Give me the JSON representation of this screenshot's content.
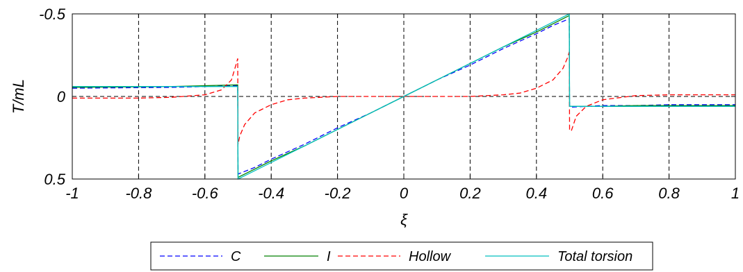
{
  "chart_data": {
    "type": "line",
    "title": "",
    "xlabel": "ξ",
    "ylabel": "T/mL",
    "xlim": [
      -1,
      1
    ],
    "ylim": [
      -0.5,
      0.5
    ],
    "y_reversed": true,
    "grid": true,
    "legend_position": "bottom-center",
    "x_ticks": [
      "-1",
      "-0.8",
      "-0.6",
      "-0.4",
      "-0.2",
      "0",
      "0.2",
      "0.4",
      "0.6",
      "0.8",
      "1"
    ],
    "x_tick_values": [
      -1,
      -0.8,
      -0.6,
      -0.4,
      -0.2,
      0,
      0.2,
      0.4,
      0.6,
      0.8,
      1
    ],
    "y_ticks": [
      "-0.5",
      "0",
      "0.5"
    ],
    "y_tick_values": [
      -0.5,
      0,
      0.5
    ],
    "series": [
      {
        "name": "C",
        "color": "#0000ff",
        "dash": "dashed",
        "x": [
          -1,
          -0.7,
          -0.6,
          -0.501,
          -0.5,
          -0.45,
          -0.4,
          -0.3,
          -0.2,
          -0.1,
          0,
          0.1,
          0.2,
          0.3,
          0.4,
          0.45,
          0.499,
          0.5,
          0.55,
          0.6,
          0.7,
          0.8,
          0.9,
          1
        ],
        "y": [
          -0.05,
          -0.055,
          -0.06,
          -0.065,
          0.47,
          0.43,
          0.38,
          0.29,
          0.19,
          0.1,
          0,
          -0.1,
          -0.19,
          -0.29,
          -0.38,
          -0.43,
          -0.47,
          0.065,
          0.06,
          0.055,
          0.055,
          0.05,
          0.05,
          0.05
        ]
      },
      {
        "name": "I",
        "color": "#008000",
        "dash": "solid",
        "x": [
          -1,
          -0.7,
          -0.6,
          -0.501,
          -0.5,
          -0.45,
          -0.4,
          -0.3,
          -0.2,
          -0.1,
          0,
          0.1,
          0.2,
          0.3,
          0.4,
          0.45,
          0.499,
          0.5,
          0.55,
          0.6,
          0.7,
          0.8,
          0.9,
          1
        ],
        "y": [
          -0.055,
          -0.06,
          -0.065,
          -0.07,
          0.49,
          0.44,
          0.39,
          0.3,
          0.2,
          0.1,
          0,
          -0.1,
          -0.2,
          -0.3,
          -0.39,
          -0.44,
          -0.49,
          0.06,
          0.06,
          0.06,
          0.055,
          0.055,
          0.055,
          0.055
        ]
      },
      {
        "name": "Hollow",
        "color": "#ff0000",
        "dash": "dashed",
        "x": [
          -1,
          -0.8,
          -0.7,
          -0.6,
          -0.55,
          -0.52,
          -0.505,
          -0.501,
          -0.5,
          -0.495,
          -0.48,
          -0.45,
          -0.4,
          -0.35,
          -0.3,
          -0.2,
          0,
          0.2,
          0.3,
          0.35,
          0.4,
          0.45,
          0.48,
          0.495,
          0.499,
          0.5,
          0.505,
          0.52,
          0.55,
          0.6,
          0.7,
          0.8,
          1
        ],
        "y": [
          0.01,
          0.01,
          0.005,
          -0.01,
          -0.04,
          -0.1,
          -0.2,
          -0.23,
          0.29,
          0.24,
          0.17,
          0.1,
          0.05,
          0.02,
          0.01,
          0,
          0,
          0,
          -0.01,
          -0.02,
          -0.05,
          -0.1,
          -0.17,
          -0.24,
          -0.27,
          0.2,
          0.21,
          0.12,
          0.06,
          0.02,
          -0.005,
          -0.01,
          -0.01
        ]
      },
      {
        "name": "Total torsion",
        "color": "#00bfbf",
        "dash": "solid",
        "x": [
          -1,
          -0.6,
          -0.501,
          -0.5,
          -0.4,
          -0.3,
          -0.2,
          -0.1,
          0,
          0.1,
          0.2,
          0.3,
          0.4,
          0.499,
          0.5,
          0.6,
          0.8,
          1
        ],
        "y": [
          -0.06,
          -0.06,
          -0.06,
          0.5,
          0.4,
          0.3,
          0.2,
          0.1,
          0,
          -0.1,
          -0.2,
          -0.3,
          -0.4,
          -0.5,
          0.06,
          0.06,
          0.06,
          0.06
        ]
      }
    ]
  }
}
